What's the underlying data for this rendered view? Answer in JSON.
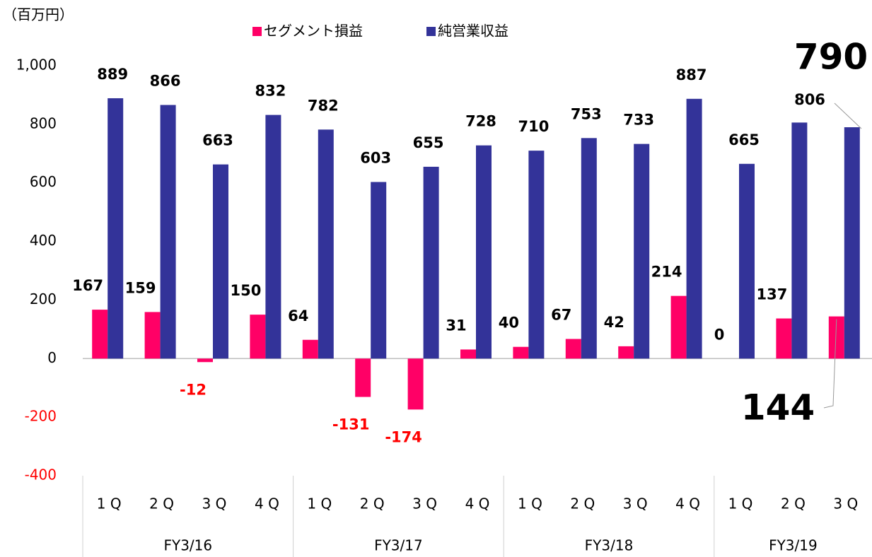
{
  "chart_data": {
    "type": "bar",
    "y_axis_label": "（百万円）",
    "categories": [
      "1 Q",
      "2 Q",
      "3 Q",
      "4 Q",
      "1 Q",
      "2 Q",
      "3 Q",
      "4 Q",
      "1 Q",
      "2 Q",
      "3 Q",
      "4 Q",
      "1 Q",
      "2 Q",
      "3 Q"
    ],
    "x_groups": [
      {
        "label": "FY3/16",
        "span": 4
      },
      {
        "label": "FY3/17",
        "span": 4
      },
      {
        "label": "FY3/18",
        "span": 4
      },
      {
        "label": "FY3/19",
        "span": 3
      }
    ],
    "series": [
      {
        "name": "セグメント損益",
        "color": "#ff0066",
        "values": [
          167,
          159,
          -12,
          150,
          64,
          -131,
          -174,
          31,
          40,
          67,
          42,
          214,
          0,
          137,
          144
        ]
      },
      {
        "name": "純営業収益",
        "color": "#333399",
        "values": [
          889,
          866,
          663,
          832,
          782,
          603,
          655,
          728,
          710,
          753,
          733,
          887,
          665,
          806,
          790
        ]
      }
    ],
    "ylim": [
      -400,
      1000
    ],
    "yticks": [
      -400,
      -200,
      0,
      200,
      400,
      600,
      800,
      {
        "value": 1000,
        "label": "1,000"
      }
    ],
    "negative_color": "#ff0000"
  }
}
